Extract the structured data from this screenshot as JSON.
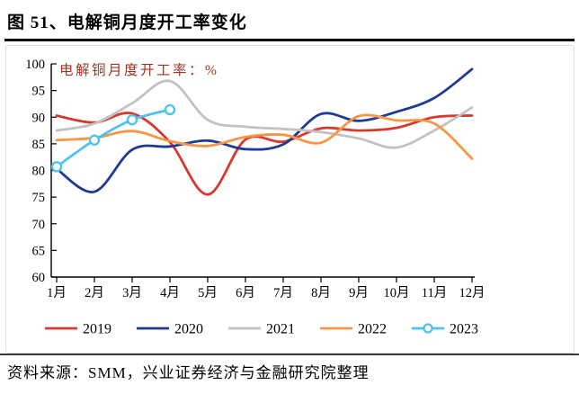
{
  "figure": {
    "title": "图 51、电解铜月度开工率变化",
    "source_note": "资料来源：SMM，兴业证券经济与金融研究院整理"
  },
  "chart_data": {
    "type": "line",
    "title": "电解铜月度开工率：%",
    "title_color": "#9e3424",
    "categories": [
      "1月",
      "2月",
      "3月",
      "4月",
      "5月",
      "6月",
      "7月",
      "8月",
      "9月",
      "10月",
      "11月",
      "12月"
    ],
    "series": [
      {
        "name": "2019",
        "color": "#d9382e",
        "marker": "none",
        "values": [
          90.3,
          89.0,
          90.7,
          85.3,
          75.5,
          85.8,
          85.4,
          87.9,
          87.5,
          88.0,
          90.0,
          90.3
        ]
      },
      {
        "name": "2020",
        "color": "#1e3a93",
        "marker": "none",
        "values": [
          80.3,
          76.0,
          83.9,
          84.5,
          85.6,
          84.0,
          84.9,
          90.6,
          89.3,
          91.0,
          93.6,
          99.0
        ]
      },
      {
        "name": "2021",
        "color": "#c2c2c2",
        "marker": "none",
        "values": [
          87.5,
          88.8,
          92.6,
          96.8,
          89.5,
          88.2,
          87.8,
          87.2,
          86.0,
          84.3,
          87.5,
          91.8
        ]
      },
      {
        "name": "2022",
        "color": "#f79646",
        "marker": "none",
        "values": [
          85.7,
          86.1,
          87.4,
          85.5,
          84.6,
          86.3,
          86.7,
          85.2,
          90.2,
          89.4,
          88.8,
          82.2
        ]
      },
      {
        "name": "2023",
        "color": "#4fc2f0",
        "marker": "circle",
        "values": [
          80.7,
          85.7,
          89.5,
          91.4
        ]
      }
    ],
    "ylim": [
      60,
      100
    ],
    "yticks": [
      60,
      65,
      70,
      75,
      80,
      85,
      90,
      95,
      100
    ],
    "grid": false,
    "legend_position": "bottom",
    "legend_labels": [
      "2019",
      "2020",
      "2021",
      "2022",
      "2023"
    ]
  }
}
